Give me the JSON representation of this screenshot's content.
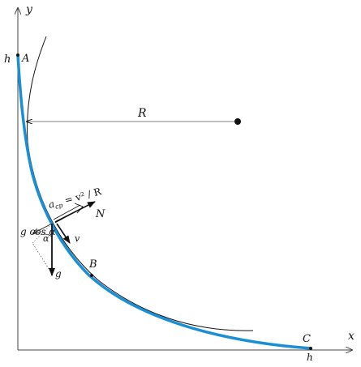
{
  "axes": {
    "x_label": "x",
    "y_label": "y"
  },
  "labels": {
    "point_a": "A",
    "point_b": "B",
    "point_c": "C",
    "height_y": "h",
    "height_x": "h",
    "radius": "R",
    "normal_force": "N",
    "velocity": "v",
    "gravity": "g",
    "angle": "α",
    "g_cos_alpha": "g cos α",
    "acp_main": "a",
    "acp_sub": "cp",
    "acp_formula": " = v² / R"
  },
  "colors": {
    "trajectory": "#1a8fd6",
    "ink": "#111111",
    "axis": "#444444"
  }
}
